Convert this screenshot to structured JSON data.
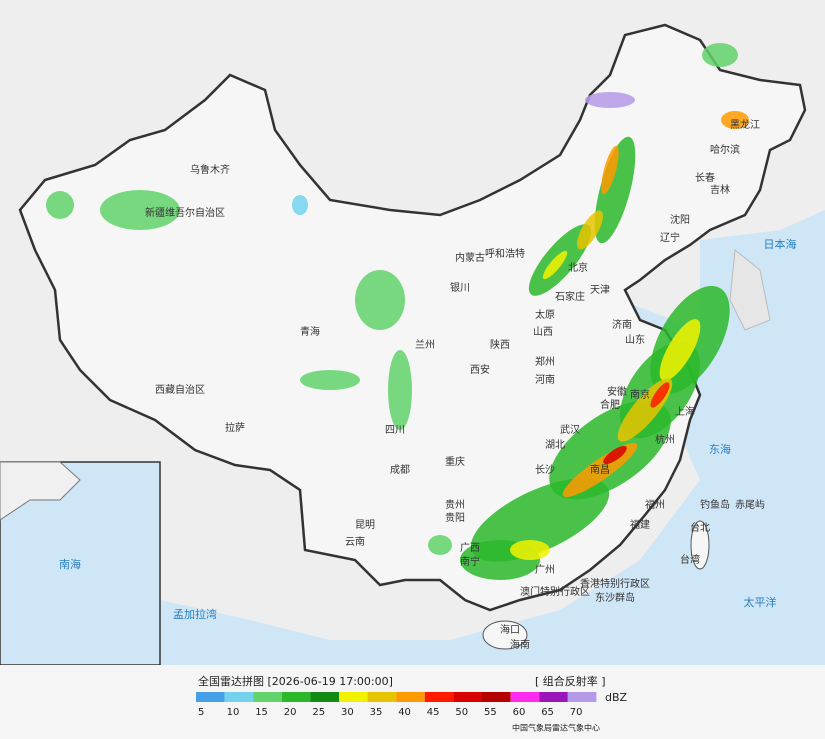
{
  "header": {
    "title": "全国雷达拼图 [2026-06-19 17:00:00]",
    "product": "[ 组合反射率 ]"
  },
  "legend": {
    "unit": "dBZ",
    "levels": [
      5,
      10,
      15,
      20,
      25,
      30,
      35,
      40,
      45,
      50,
      55,
      60,
      65,
      70
    ],
    "colors": [
      "#46a0e8",
      "#74d2ee",
      "#62d26a",
      "#2bb82b",
      "#138a13",
      "#f2f200",
      "#e6c400",
      "#ff9a00",
      "#ff1a00",
      "#d80000",
      "#b40000",
      "#ff2cf0",
      "#9a16b8",
      "#b49ae8"
    ]
  },
  "credit": "中国气象局雷达气象中心",
  "labels": [
    "乌鲁木齐",
    "新疆维吾尔自治区",
    "西藏自治区",
    "拉萨",
    "青海",
    "兰州",
    "银川",
    "内蒙古",
    "呼和浩特",
    "北京",
    "天津",
    "石家庄",
    "太原",
    "山西",
    "陕西",
    "西安",
    "河南",
    "郑州",
    "济南",
    "山东",
    "合肥",
    "安徽",
    "南京",
    "上海",
    "武汉",
    "湖北",
    "杭州",
    "南昌",
    "长沙",
    "重庆",
    "四川",
    "成都",
    "贵州",
    "贵阳",
    "云南",
    "昆明",
    "广西",
    "南宁",
    "广州",
    "福建",
    "福州",
    "台北",
    "台湾",
    "香港特别行政区",
    "澳门特别行政区",
    "海口",
    "海南",
    "黑龙江",
    "哈尔滨",
    "吉林",
    "长春",
    "辽宁",
    "沈阳",
    "日本海",
    "东海",
    "太平洋",
    "钓鱼岛",
    "赤尾屿",
    "东沙群岛",
    "孟加拉湾",
    "南海"
  ]
}
